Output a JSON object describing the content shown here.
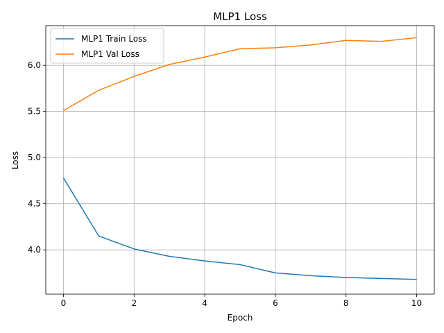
{
  "chart_data": {
    "type": "line",
    "title": "MLP1 Loss",
    "xlabel": "Epoch",
    "ylabel": "Loss",
    "xlim": [
      -0.5,
      10.5
    ],
    "ylim": [
      3.52,
      6.43
    ],
    "xticks": [
      0,
      2,
      4,
      6,
      8,
      10
    ],
    "yticks": [
      4.0,
      4.5,
      5.0,
      5.5,
      6.0
    ],
    "grid": true,
    "legend_position": "top-left",
    "x": [
      0,
      1,
      2,
      3,
      4,
      5,
      6,
      7,
      8,
      9,
      10
    ],
    "series": [
      {
        "name": "MLP1 Train Loss",
        "color": "#1f77b4",
        "values": [
          4.78,
          4.15,
          4.01,
          3.93,
          3.88,
          3.84,
          3.75,
          3.72,
          3.7,
          3.69,
          3.68
        ]
      },
      {
        "name": "MLP1 Val Loss",
        "color": "#ff7f0e",
        "values": [
          5.51,
          5.73,
          5.88,
          6.01,
          6.09,
          6.18,
          6.19,
          6.22,
          6.27,
          6.26,
          6.3
        ]
      }
    ]
  }
}
